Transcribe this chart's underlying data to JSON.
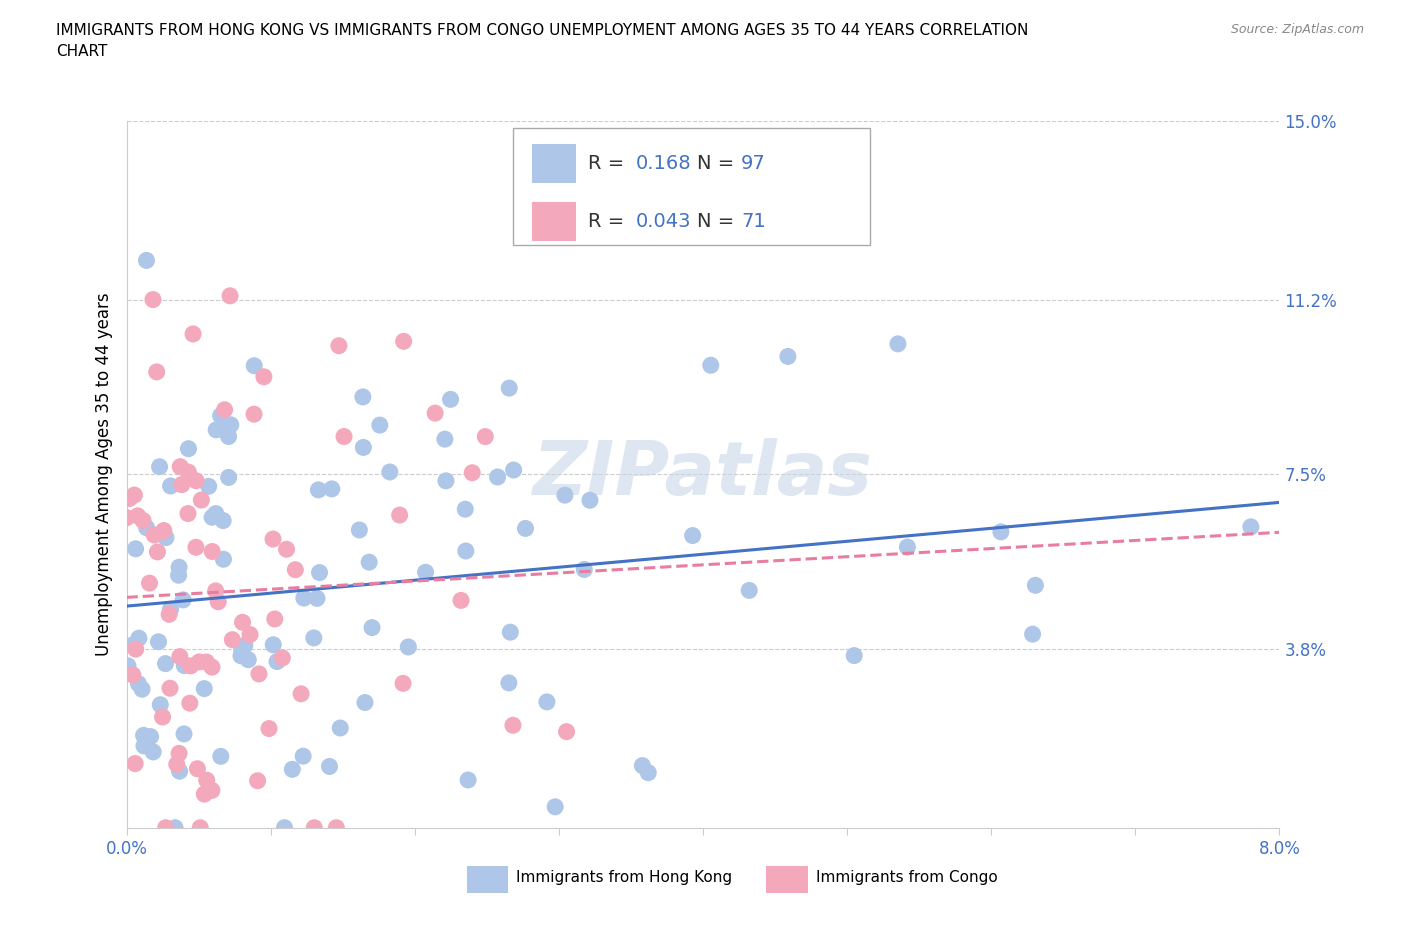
{
  "title_line1": "IMMIGRANTS FROM HONG KONG VS IMMIGRANTS FROM CONGO UNEMPLOYMENT AMONG AGES 35 TO 44 YEARS CORRELATION",
  "title_line2": "CHART",
  "source": "Source: ZipAtlas.com",
  "ylabel": "Unemployment Among Ages 35 to 44 years",
  "xlim": [
    0.0,
    0.08
  ],
  "ylim": [
    0.0,
    0.15
  ],
  "ytick_positions": [
    0.0,
    0.038,
    0.075,
    0.112,
    0.15
  ],
  "yticklabels": [
    "",
    "3.8%",
    "7.5%",
    "11.2%",
    "15.0%"
  ],
  "xtick_positions": [
    0.0,
    0.01,
    0.02,
    0.03,
    0.04,
    0.05,
    0.06,
    0.07,
    0.08
  ],
  "xticklabels": [
    "0.0%",
    "",
    "",
    "",
    "",
    "",
    "",
    "",
    "8.0%"
  ],
  "hk_color": "#aec6e8",
  "congo_color": "#f4a8bc",
  "hk_line_color": "#4472c4",
  "congo_line_color": "#e87da0",
  "hk_R": 0.168,
  "hk_N": 97,
  "congo_R": 0.043,
  "congo_N": 71,
  "legend_label_hk": "Immigrants from Hong Kong",
  "legend_label_congo": "Immigrants from Congo",
  "watermark_text": "ZIPatlas",
  "background_color": "#ffffff",
  "grid_color": "#cccccc",
  "axis_text_color": "#4472c4",
  "title_fontsize": 11,
  "tick_fontsize": 12,
  "legend_fontsize": 14,
  "watermark_fontsize": 54,
  "source_fontsize": 9
}
